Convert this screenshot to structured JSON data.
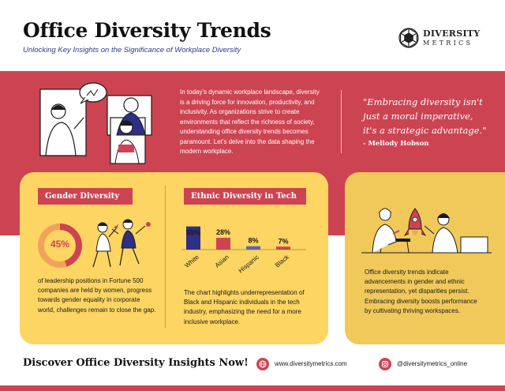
{
  "header": {
    "title": "Office Diversity Trends",
    "subtitle": "Unlocking Key Insights on the Significance of Workplace Diversity",
    "brand_top": "DIVERSITY",
    "brand_bottom": "METRICS"
  },
  "intro": {
    "text": "In today's dynamic workplace landscape, diversity is a driving force for innovation, productivity, and inclusivity. As organizations strive to create environments that reflect the richness of society, understanding office diversity trends becomes paramount. Let's delve into the data shaping the modern workplace."
  },
  "quote": {
    "text": "\"Embracing diversity isn't just a moral imperative, it's a strategic advantage.\"",
    "author": "- Mellody Hobson"
  },
  "gender": {
    "heading": "Gender Diversity",
    "percent_label": "45%",
    "percent": 45,
    "text": "of leadership positions in Fortune 500 companies are held by women, progress towards gender equality in corporate world, challenges remain to close the gap."
  },
  "ethnic": {
    "heading": "Ethnic Diversity in Tech",
    "text": "The chart highlights underrepresentation of Black and Hispanic individuals in the tech industry, emphasizing the need for a more inclusive workplace."
  },
  "chart_data": {
    "type": "bar",
    "categories": [
      "White",
      "Asian",
      "Hispanic",
      "Black"
    ],
    "values": [
      55,
      28,
      8,
      7
    ],
    "value_labels": [
      "55%",
      "28%",
      "8%",
      "7%"
    ],
    "colors": [
      "#2f2f86",
      "#cc4452",
      "#5a64b4",
      "#cc4452"
    ],
    "ylim": [
      0,
      60
    ],
    "grid": false,
    "legend": "none"
  },
  "summary": {
    "text": "Office diversity trends indicate advancements in gender and ethnic representation, yet disparities persist. Embracing diversity boosts performance by cultivating thriving workspaces."
  },
  "footer": {
    "cta": "Discover Office Diversity Insights Now!",
    "website": "www.diversitymetrics.com",
    "instagram": "@diversitymetrics_online"
  },
  "icons": {
    "website": "globe-icon",
    "instagram": "instagram-icon",
    "brand": "brand-logo-icon"
  },
  "colors": {
    "primary_red": "#cc4452",
    "card_yellow": "#fcd562",
    "navy": "#2f2f86"
  }
}
